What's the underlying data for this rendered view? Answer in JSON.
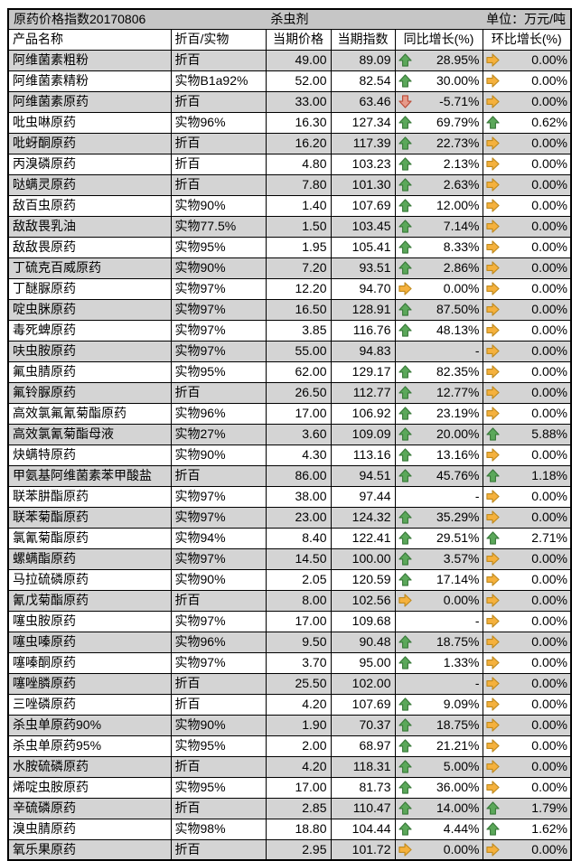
{
  "title_bar": {
    "title": "原药价格指数20170806",
    "category": "杀虫剂",
    "unit": "单位：万元/吨"
  },
  "columns": [
    "产品名称",
    "折百/实物",
    "当期价格",
    "当期指数",
    "同比增长(%)",
    "环比增长(%)"
  ],
  "colors": {
    "title_bg": "#c6c6c6",
    "stripe_bg": "#d4d4d4",
    "row_bg": "#ffffff",
    "border": "#000000",
    "arrow_up_fill": "#5BA85A",
    "arrow_up_stroke": "#39793A",
    "arrow_down_fill": "#E79A89",
    "arrow_down_stroke": "#BA4B38",
    "arrow_flat_fill": "#F5B13D",
    "arrow_flat_stroke": "#BF8A1F"
  },
  "icon_names": {
    "up": "arrow-up-icon",
    "down": "arrow-down-icon",
    "flat": "arrow-right-icon"
  },
  "table": {
    "rows": [
      {
        "name": "阿维菌素粗粉",
        "spec": "折百",
        "price": "49.00",
        "index": "89.09",
        "yoy_dir": "up",
        "yoy": "28.95%",
        "mom_dir": "flat",
        "mom": "0.00%"
      },
      {
        "name": "阿维菌素精粉",
        "spec": "实物B1a92%",
        "price": "52.00",
        "index": "82.54",
        "yoy_dir": "up",
        "yoy": "30.00%",
        "mom_dir": "flat",
        "mom": "0.00%"
      },
      {
        "name": "阿维菌素原药",
        "spec": "折百",
        "price": "33.00",
        "index": "63.46",
        "yoy_dir": "down",
        "yoy": "-5.71%",
        "mom_dir": "flat",
        "mom": "0.00%"
      },
      {
        "name": "吡虫啉原药",
        "spec": "实物96%",
        "price": "16.30",
        "index": "127.34",
        "yoy_dir": "up",
        "yoy": "69.79%",
        "mom_dir": "up",
        "mom": "0.62%"
      },
      {
        "name": "吡蚜酮原药",
        "spec": "折百",
        "price": "16.20",
        "index": "117.39",
        "yoy_dir": "up",
        "yoy": "22.73%",
        "mom_dir": "flat",
        "mom": "0.00%"
      },
      {
        "name": "丙溴磷原药",
        "spec": "折百",
        "price": "4.80",
        "index": "103.23",
        "yoy_dir": "up",
        "yoy": "2.13%",
        "mom_dir": "flat",
        "mom": "0.00%"
      },
      {
        "name": "哒螨灵原药",
        "spec": "折百",
        "price": "7.80",
        "index": "101.30",
        "yoy_dir": "up",
        "yoy": "2.63%",
        "mom_dir": "flat",
        "mom": "0.00%"
      },
      {
        "name": "敌百虫原药",
        "spec": "实物90%",
        "price": "1.40",
        "index": "107.69",
        "yoy_dir": "up",
        "yoy": "12.00%",
        "mom_dir": "flat",
        "mom": "0.00%"
      },
      {
        "name": "敌敌畏乳油",
        "spec": "实物77.5%",
        "price": "1.50",
        "index": "103.45",
        "yoy_dir": "up",
        "yoy": "7.14%",
        "mom_dir": "flat",
        "mom": "0.00%"
      },
      {
        "name": "敌敌畏原药",
        "spec": "实物95%",
        "price": "1.95",
        "index": "105.41",
        "yoy_dir": "up",
        "yoy": "8.33%",
        "mom_dir": "flat",
        "mom": "0.00%"
      },
      {
        "name": "丁硫克百威原药",
        "spec": "实物90%",
        "price": "7.20",
        "index": "93.51",
        "yoy_dir": "up",
        "yoy": "2.86%",
        "mom_dir": "flat",
        "mom": "0.00%"
      },
      {
        "name": "丁醚脲原药",
        "spec": "实物97%",
        "price": "12.20",
        "index": "94.70",
        "yoy_dir": "flat",
        "yoy": "0.00%",
        "mom_dir": "flat",
        "mom": "0.00%"
      },
      {
        "name": "啶虫脒原药",
        "spec": "实物97%",
        "price": "16.50",
        "index": "128.91",
        "yoy_dir": "up",
        "yoy": "87.50%",
        "mom_dir": "flat",
        "mom": "0.00%"
      },
      {
        "name": "毒死蜱原药",
        "spec": "实物97%",
        "price": "3.85",
        "index": "116.76",
        "yoy_dir": "up",
        "yoy": "48.13%",
        "mom_dir": "flat",
        "mom": "0.00%"
      },
      {
        "name": "呋虫胺原药",
        "spec": "实物97%",
        "price": "55.00",
        "index": "94.83",
        "yoy_dir": "none",
        "yoy": "-",
        "mom_dir": "flat",
        "mom": "0.00%"
      },
      {
        "name": "氟虫腈原药",
        "spec": "实物95%",
        "price": "62.00",
        "index": "129.17",
        "yoy_dir": "up",
        "yoy": "82.35%",
        "mom_dir": "flat",
        "mom": "0.00%"
      },
      {
        "name": "氟铃脲原药",
        "spec": "折百",
        "price": "26.50",
        "index": "112.77",
        "yoy_dir": "up",
        "yoy": "12.77%",
        "mom_dir": "flat",
        "mom": "0.00%"
      },
      {
        "name": "高效氯氟氰菊酯原药",
        "spec": "实物96%",
        "price": "17.00",
        "index": "106.92",
        "yoy_dir": "up",
        "yoy": "23.19%",
        "mom_dir": "flat",
        "mom": "0.00%"
      },
      {
        "name": "高效氯氰菊酯母液",
        "spec": "实物27%",
        "price": "3.60",
        "index": "109.09",
        "yoy_dir": "up",
        "yoy": "20.00%",
        "mom_dir": "up",
        "mom": "5.88%"
      },
      {
        "name": "炔螨特原药",
        "spec": "实物90%",
        "price": "4.30",
        "index": "113.16",
        "yoy_dir": "up",
        "yoy": "13.16%",
        "mom_dir": "flat",
        "mom": "0.00%"
      },
      {
        "name": "甲氨基阿维菌素苯甲酸盐",
        "spec": "折百",
        "price": "86.00",
        "index": "94.51",
        "yoy_dir": "up",
        "yoy": "45.76%",
        "mom_dir": "up",
        "mom": "1.18%"
      },
      {
        "name": "联苯肼酯原药",
        "spec": "实物97%",
        "price": "38.00",
        "index": "97.44",
        "yoy_dir": "none",
        "yoy": "-",
        "mom_dir": "flat",
        "mom": "0.00%"
      },
      {
        "name": "联苯菊酯原药",
        "spec": "实物97%",
        "price": "23.00",
        "index": "124.32",
        "yoy_dir": "up",
        "yoy": "35.29%",
        "mom_dir": "flat",
        "mom": "0.00%"
      },
      {
        "name": "氯氰菊酯原药",
        "spec": "实物94%",
        "price": "8.40",
        "index": "122.41",
        "yoy_dir": "up",
        "yoy": "29.51%",
        "mom_dir": "up",
        "mom": "2.71%"
      },
      {
        "name": "螺螨酯原药",
        "spec": "实物97%",
        "price": "14.50",
        "index": "100.00",
        "yoy_dir": "up",
        "yoy": "3.57%",
        "mom_dir": "flat",
        "mom": "0.00%"
      },
      {
        "name": "马拉硫磷原药",
        "spec": "实物90%",
        "price": "2.05",
        "index": "120.59",
        "yoy_dir": "up",
        "yoy": "17.14%",
        "mom_dir": "flat",
        "mom": "0.00%"
      },
      {
        "name": "氰戊菊酯原药",
        "spec": "折百",
        "price": "8.00",
        "index": "102.56",
        "yoy_dir": "flat",
        "yoy": "0.00%",
        "mom_dir": "flat",
        "mom": "0.00%"
      },
      {
        "name": "噻虫胺原药",
        "spec": "实物97%",
        "price": "17.00",
        "index": "109.68",
        "yoy_dir": "none",
        "yoy": "-",
        "mom_dir": "flat",
        "mom": "0.00%"
      },
      {
        "name": "噻虫嗪原药",
        "spec": "实物96%",
        "price": "9.50",
        "index": "90.48",
        "yoy_dir": "up",
        "yoy": "18.75%",
        "mom_dir": "flat",
        "mom": "0.00%"
      },
      {
        "name": "噻嗪酮原药",
        "spec": "实物97%",
        "price": "3.70",
        "index": "95.00",
        "yoy_dir": "up",
        "yoy": "1.33%",
        "mom_dir": "flat",
        "mom": "0.00%"
      },
      {
        "name": "噻唑膦原药",
        "spec": "折百",
        "price": "25.50",
        "index": "102.00",
        "yoy_dir": "none",
        "yoy": "-",
        "mom_dir": "flat",
        "mom": "0.00%"
      },
      {
        "name": "三唑磷原药",
        "spec": "折百",
        "price": "4.20",
        "index": "107.69",
        "yoy_dir": "up",
        "yoy": "9.09%",
        "mom_dir": "flat",
        "mom": "0.00%"
      },
      {
        "name": "杀虫单原药90%",
        "spec": "实物90%",
        "price": "1.90",
        "index": "70.37",
        "yoy_dir": "up",
        "yoy": "18.75%",
        "mom_dir": "flat",
        "mom": "0.00%"
      },
      {
        "name": "杀虫单原药95%",
        "spec": "实物95%",
        "price": "2.00",
        "index": "68.97",
        "yoy_dir": "up",
        "yoy": "21.21%",
        "mom_dir": "flat",
        "mom": "0.00%"
      },
      {
        "name": "水胺硫磷原药",
        "spec": "折百",
        "price": "4.20",
        "index": "118.31",
        "yoy_dir": "up",
        "yoy": "5.00%",
        "mom_dir": "flat",
        "mom": "0.00%"
      },
      {
        "name": "烯啶虫胺原药",
        "spec": "实物95%",
        "price": "17.00",
        "index": "81.73",
        "yoy_dir": "up",
        "yoy": "36.00%",
        "mom_dir": "flat",
        "mom": "0.00%"
      },
      {
        "name": "辛硫磷原药",
        "spec": "折百",
        "price": "2.85",
        "index": "110.47",
        "yoy_dir": "up",
        "yoy": "14.00%",
        "mom_dir": "up",
        "mom": "1.79%"
      },
      {
        "name": "溴虫腈原药",
        "spec": "实物98%",
        "price": "18.80",
        "index": "104.44",
        "yoy_dir": "up",
        "yoy": "4.44%",
        "mom_dir": "up",
        "mom": "1.62%"
      },
      {
        "name": "氧乐果原药",
        "spec": "折百",
        "price": "2.95",
        "index": "101.72",
        "yoy_dir": "flat",
        "yoy": "0.00%",
        "mom_dir": "flat",
        "mom": "0.00%"
      }
    ]
  }
}
